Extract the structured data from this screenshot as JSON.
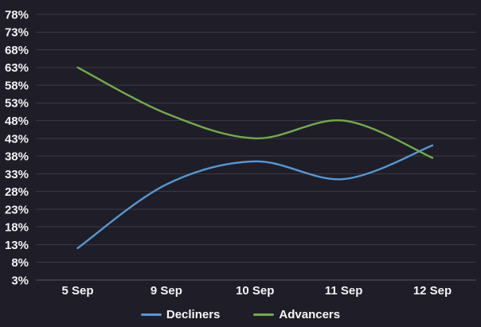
{
  "chart": {
    "background_color": "#1f1e28",
    "grid_color": "#3b3a44",
    "baseline_color": "#56555e",
    "text_color": "#f2f2f5"
  },
  "chart_data": {
    "type": "line",
    "curve": "smooth",
    "title": "",
    "xlabel": "",
    "ylabel": "",
    "categories": [
      "5 Sep",
      "9 Sep",
      "10 Sep",
      "11 Sep",
      "12 Sep"
    ],
    "series": [
      {
        "name": "Decliners",
        "color": "#5598d5",
        "values": [
          12,
          30,
          36.5,
          31.5,
          41
        ]
      },
      {
        "name": "Advancers",
        "color": "#74ab48",
        "values": [
          63,
          50,
          43,
          48,
          37.5
        ]
      }
    ],
    "ylim": [
      3,
      78
    ],
    "y_tick_values": [
      78,
      73,
      68,
      63,
      58,
      53,
      48,
      43,
      38,
      33,
      28,
      23,
      18,
      13,
      8,
      3
    ],
    "y_tick_labels": [
      "78%",
      "73%",
      "68%",
      "63%",
      "58%",
      "53%",
      "48%",
      "43%",
      "38%",
      "33%",
      "28%",
      "23%",
      "18%",
      "13%",
      "8%",
      "3%"
    ],
    "grid": true,
    "legend_position": "bottom-center"
  }
}
